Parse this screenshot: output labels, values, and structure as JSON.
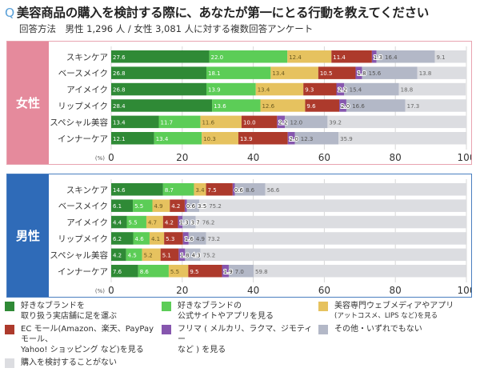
{
  "title": {
    "q": "Q",
    "text": "美容商品の購入を検討する際に、あなたが第一にとる行動を教えてください"
  },
  "subtitle": "回答方法　男性 1,296 人 / 女性 3,081 人に対する複数回答アンケート",
  "colors": [
    "#2f8a36",
    "#5ccd57",
    "#e6c25f",
    "#ad3a2c",
    "#8656ae",
    "#b3b8c7",
    "#dcdde1"
  ],
  "legend": [
    {
      "line1": "好きなブランドを",
      "line2": "取り扱う実店舗に足を運ぶ"
    },
    {
      "line1": "好きなブランドの",
      "line2": "公式サイトやアプリを見る"
    },
    {
      "line1": "美容専門ウェブメディアやアプリ",
      "line2": "(アットコスメ、LIPS など)を見る"
    },
    {
      "line1": "EC モール(Amazon、楽天、PayPay モール、",
      "line2": "Yahoo! ショッピング など)を見る"
    },
    {
      "line1": "フリマ ( メルカリ、ラクマ、ジモティー",
      "line2": "など ) を見る"
    },
    {
      "line1": "その他・いずれでもない",
      "line2": ""
    },
    {
      "line1": "購入を検討することがない",
      "line2": ""
    }
  ],
  "chart_data": [
    {
      "type": "bar",
      "orientation": "horizontal-stacked",
      "panel_label": "女性",
      "categories": [
        "スキンケア",
        "ベースメイク",
        "アイメイク",
        "リップメイク",
        "スペシャル美容",
        "インナーケア"
      ],
      "xlim": [
        0,
        100
      ],
      "xticks": [
        "0",
        "20",
        "40",
        "60",
        "80",
        "100"
      ],
      "xunit": "(%)",
      "grid": true,
      "values": [
        [
          27.6,
          22.0,
          12.4,
          11.4,
          1.3,
          16.4,
          9.1
        ],
        [
          26.8,
          18.1,
          13.4,
          10.5,
          1.8,
          15.6,
          13.8
        ],
        [
          26.8,
          13.9,
          13.4,
          9.3,
          2.2,
          15.4,
          18.8
        ],
        [
          28.4,
          13.6,
          12.6,
          9.6,
          2.0,
          16.6,
          17.3
        ],
        [
          13.4,
          11.7,
          11.6,
          10.0,
          2.2,
          12.0,
          39.2
        ],
        [
          12.1,
          13.4,
          10.3,
          13.9,
          2.0,
          12.3,
          35.9
        ]
      ]
    },
    {
      "type": "bar",
      "orientation": "horizontal-stacked",
      "panel_label": "男性",
      "categories": [
        "スキンケア",
        "ベースメイク",
        "アイメイク",
        "リップメイク",
        "スペシャル美容",
        "インナーケア"
      ],
      "xlim": [
        0,
        100
      ],
      "xticks": [
        "0",
        "20",
        "40",
        "60",
        "80",
        "100"
      ],
      "xunit": "(%)",
      "grid": true,
      "values": [
        [
          14.6,
          8.7,
          3.4,
          7.5,
          0.6,
          8.6,
          56.6
        ],
        [
          6.1,
          5.5,
          4.9,
          4.2,
          0.6,
          3.5,
          75.2
        ],
        [
          4.4,
          5.5,
          4.7,
          4.2,
          1.3,
          3.7,
          76.2
        ],
        [
          6.2,
          4.6,
          4.1,
          5.3,
          1.6,
          4.9,
          73.2
        ],
        [
          4.2,
          4.5,
          5.2,
          5.1,
          1.8,
          4.3,
          75.2
        ],
        [
          7.6,
          8.6,
          5.5,
          9.5,
          1.9,
          7.0,
          59.8
        ]
      ]
    }
  ]
}
